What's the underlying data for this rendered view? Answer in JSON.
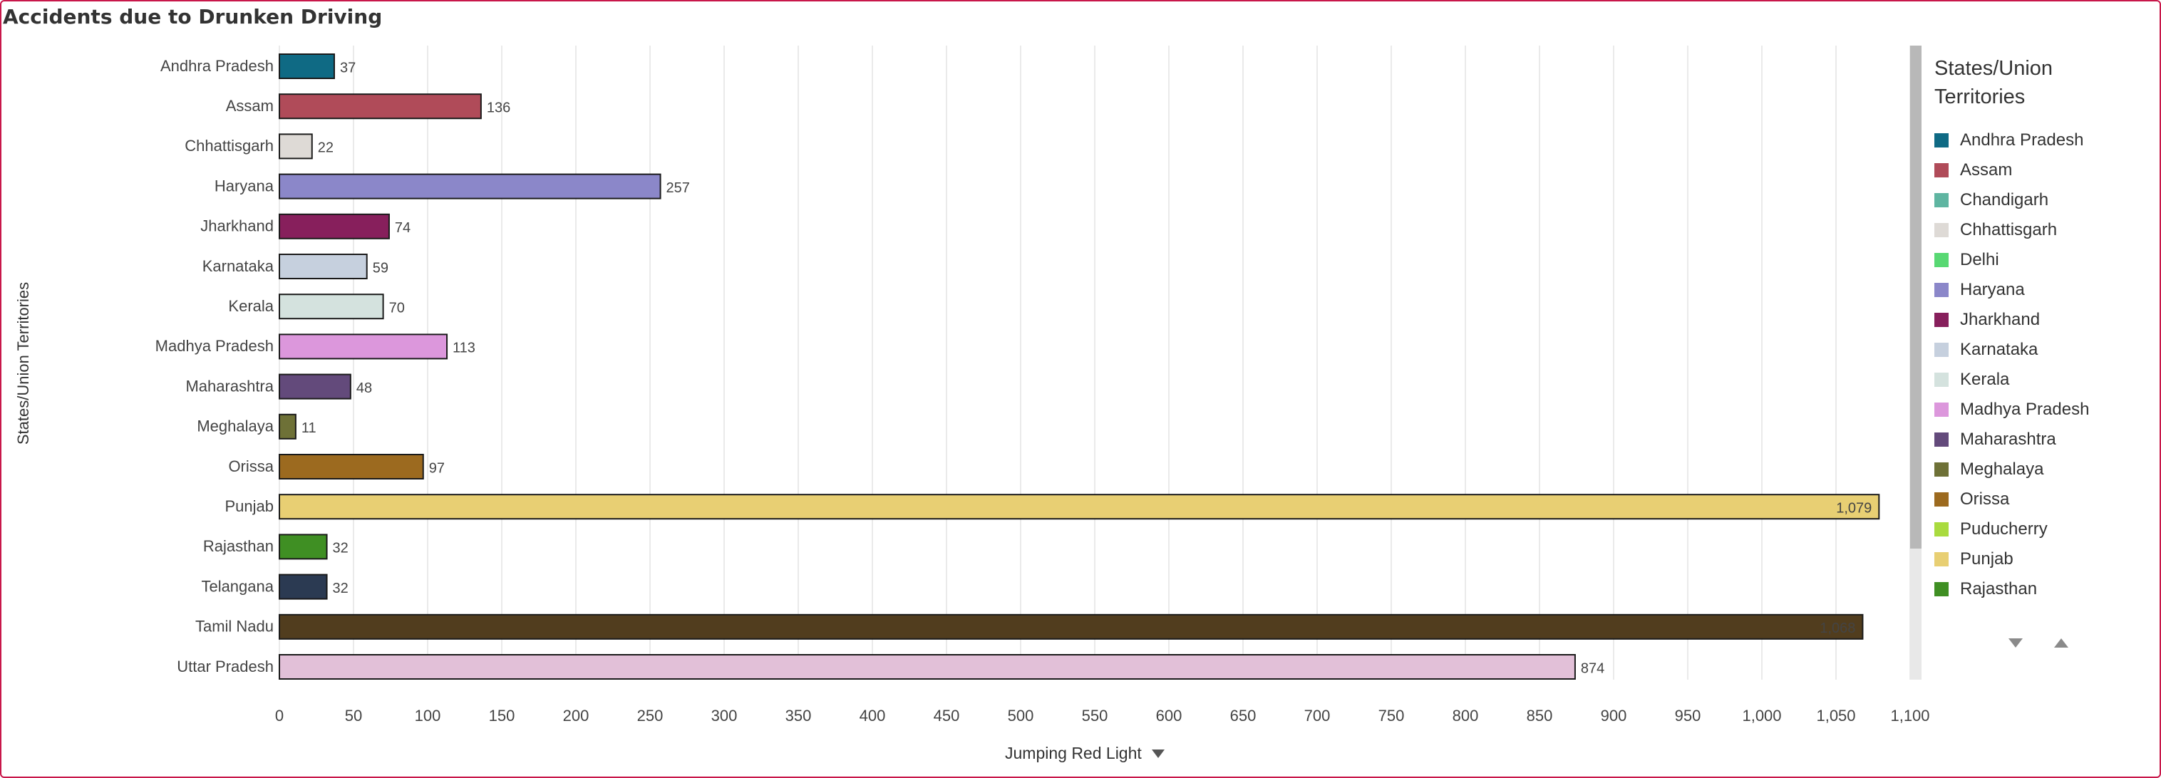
{
  "title": "Accidents due to Drunken Driving",
  "x_axis_selector": {
    "label": "Jumping Red Light",
    "caret_icon": "caret-down-icon"
  },
  "legend": {
    "title": "States/Union Territories",
    "items": [
      {
        "label": "Andhra Pradesh",
        "color": "#0f6a84"
      },
      {
        "label": "Assam",
        "color": "#b04b59"
      },
      {
        "label": "Chandigarh",
        "color": "#5fb5a1"
      },
      {
        "label": "Chhattisgarh",
        "color": "#dedad6"
      },
      {
        "label": "Delhi",
        "color": "#58d873"
      },
      {
        "label": "Haryana",
        "color": "#8b87c9"
      },
      {
        "label": "Jharkhand",
        "color": "#871f5c"
      },
      {
        "label": "Karnataka",
        "color": "#c6d0de"
      },
      {
        "label": "Kerala",
        "color": "#d4e2de"
      },
      {
        "label": "Madhya Pradesh",
        "color": "#dc97dc"
      },
      {
        "label": "Maharashtra",
        "color": "#634a7b"
      },
      {
        "label": "Meghalaya",
        "color": "#6e7137"
      },
      {
        "label": "Orissa",
        "color": "#9c6a1f"
      },
      {
        "label": "Puducherry",
        "color": "#a9db3f"
      },
      {
        "label": "Punjab",
        "color": "#e8cf73"
      },
      {
        "label": "Rajasthan",
        "color": "#3f8f23"
      },
      {
        "label": "Tamil Nadu",
        "color": "#513d1e"
      }
    ],
    "nav_down_icon": "chevron-down-icon",
    "nav_up_icon": "chevron-up-icon"
  },
  "chart_data": {
    "type": "bar",
    "orientation": "horizontal",
    "title": "Accidents due to Drunken Driving",
    "xlabel": "Jumping Red Light",
    "ylabel": "States/Union Territories",
    "xlim": [
      0,
      1100
    ],
    "x_ticks": [
      "0",
      "50",
      "100",
      "150",
      "200",
      "250",
      "300",
      "350",
      "400",
      "450",
      "500",
      "550",
      "600",
      "650",
      "700",
      "750",
      "800",
      "850",
      "900",
      "950",
      "1,000",
      "1,050",
      "1,100"
    ],
    "grid": "vertical",
    "legend_position": "right",
    "categories": [
      "Andhra Pradesh",
      "Assam",
      "Chhattisgarh",
      "Haryana",
      "Jharkhand",
      "Karnataka",
      "Kerala",
      "Madhya Pradesh",
      "Maharashtra",
      "Meghalaya",
      "Orissa",
      "Punjab",
      "Rajasthan",
      "Telangana",
      "Tamil Nadu",
      "Uttar Pradesh"
    ],
    "values": [
      37,
      136,
      22,
      257,
      74,
      59,
      70,
      113,
      48,
      11,
      97,
      1079,
      32,
      32,
      1068,
      874
    ],
    "value_labels": [
      "37",
      "136",
      "22",
      "257",
      "74",
      "59",
      "70",
      "113",
      "48",
      "11",
      "97",
      "1,079",
      "32",
      "32",
      "1,068",
      "874"
    ],
    "colors": [
      "#0f6a84",
      "#b04b59",
      "#dedad6",
      "#8b87c9",
      "#871f5c",
      "#c6d0de",
      "#d4e2de",
      "#dc97dc",
      "#634a7b",
      "#6e7137",
      "#9c6a1f",
      "#e8cf73",
      "#3f8f23",
      "#2b3a52",
      "#513d1e",
      "#e2c0d8"
    ]
  }
}
